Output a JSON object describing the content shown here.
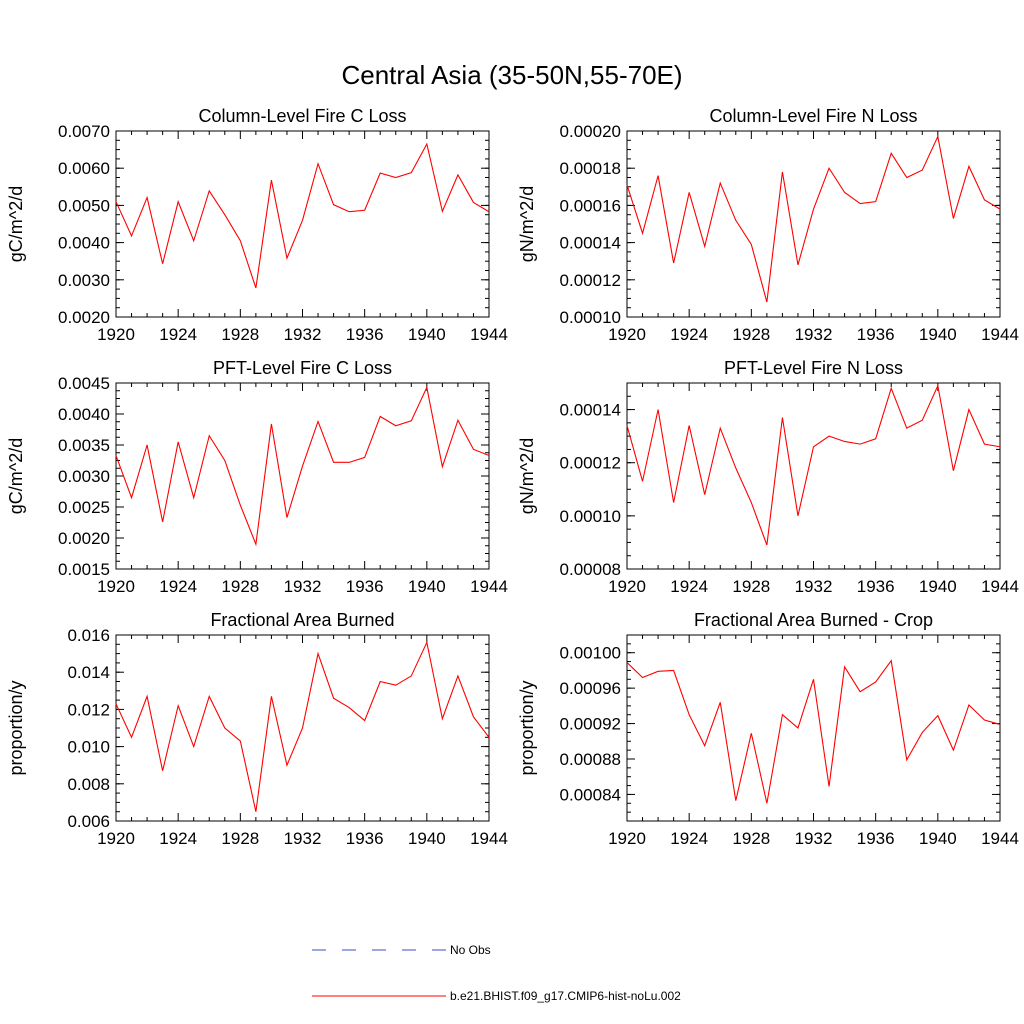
{
  "title": "Central Asia (35-50N,55-70E)",
  "legend": [
    {
      "label": "No Obs",
      "color": "#3b4cc0",
      "dashed": true
    },
    {
      "label": "b.e21.BHIST.f09_g17.CMIP6-hist-noLu.002",
      "color": "#ff0000",
      "dashed": false
    }
  ],
  "chart_data": [
    {
      "type": "line",
      "title": "Column-Level Fire C Loss",
      "ylabel": "gC/m^2/d",
      "xlim": [
        1920,
        1944
      ],
      "ylim": [
        0.002,
        0.007
      ],
      "xticks": [
        "1920",
        "1924",
        "1928",
        "1932",
        "1936",
        "1940",
        "1944"
      ],
      "yticks": [
        "0.0020",
        "0.0030",
        "0.0040",
        "0.0050",
        "0.0060",
        "0.0070"
      ],
      "x": [
        1920,
        1921,
        1922,
        1923,
        1924,
        1925,
        1926,
        1927,
        1928,
        1929,
        1930,
        1931,
        1932,
        1933,
        1934,
        1935,
        1936,
        1937,
        1938,
        1939,
        1940,
        1941,
        1942,
        1943,
        1944
      ],
      "series": [
        {
          "name": "b.e21.BHIST.f09_g17.CMIP6-hist-noLu.002",
          "color": "#ff0000",
          "values": [
            0.0051,
            0.00418,
            0.00521,
            0.00343,
            0.0051,
            0.00405,
            0.00539,
            0.00475,
            0.00405,
            0.00278,
            0.00568,
            0.00358,
            0.0046,
            0.00612,
            0.00502,
            0.00483,
            0.00487,
            0.00587,
            0.00575,
            0.00588,
            0.00665,
            0.00484,
            0.00582,
            0.00508,
            0.00483
          ]
        }
      ]
    },
    {
      "type": "line",
      "title": "Column-Level Fire N Loss",
      "ylabel": "gN/m^2/d",
      "xlim": [
        1920,
        1944
      ],
      "ylim": [
        0.0001,
        0.0002
      ],
      "xticks": [
        "1920",
        "1924",
        "1928",
        "1932",
        "1936",
        "1940",
        "1944"
      ],
      "yticks": [
        "0.00010",
        "0.00012",
        "0.00014",
        "0.00016",
        "0.00018",
        "0.00020"
      ],
      "x": [
        1920,
        1921,
        1922,
        1923,
        1924,
        1925,
        1926,
        1927,
        1928,
        1929,
        1930,
        1931,
        1932,
        1933,
        1934,
        1935,
        1936,
        1937,
        1938,
        1939,
        1940,
        1941,
        1942,
        1943,
        1944
      ],
      "series": [
        {
          "name": "b.e21.BHIST.f09_g17.CMIP6-hist-noLu.002",
          "color": "#ff0000",
          "values": [
            0.000171,
            0.000145,
            0.000176,
            0.000129,
            0.000167,
            0.000138,
            0.000172,
            0.000152,
            0.000139,
            0.000108,
            0.000178,
            0.000128,
            0.000158,
            0.00018,
            0.000167,
            0.000161,
            0.000162,
            0.000188,
            0.000175,
            0.000179,
            0.000197,
            0.000153,
            0.000181,
            0.000163,
            0.000158
          ]
        }
      ]
    },
    {
      "type": "line",
      "title": "PFT-Level Fire C Loss",
      "ylabel": "gC/m^2/d",
      "xlim": [
        1920,
        1944
      ],
      "ylim": [
        0.0015,
        0.0045
      ],
      "xticks": [
        "1920",
        "1924",
        "1928",
        "1932",
        "1936",
        "1940",
        "1944"
      ],
      "yticks": [
        "0.0015",
        "0.0020",
        "0.0025",
        "0.0030",
        "0.0035",
        "0.0040",
        "0.0045"
      ],
      "x": [
        1920,
        1921,
        1922,
        1923,
        1924,
        1925,
        1926,
        1927,
        1928,
        1929,
        1930,
        1931,
        1932,
        1933,
        1934,
        1935,
        1936,
        1937,
        1938,
        1939,
        1940,
        1941,
        1942,
        1943,
        1944
      ],
      "series": [
        {
          "name": "b.e21.BHIST.f09_g17.CMIP6-hist-noLu.002",
          "color": "#ff0000",
          "values": [
            0.00333,
            0.00265,
            0.0035,
            0.00226,
            0.00355,
            0.00265,
            0.00365,
            0.00325,
            0.00253,
            0.0019,
            0.00384,
            0.00233,
            0.00316,
            0.00388,
            0.00322,
            0.00322,
            0.0033,
            0.00396,
            0.00381,
            0.00389,
            0.00443,
            0.00315,
            0.0039,
            0.00343,
            0.00333
          ]
        }
      ]
    },
    {
      "type": "line",
      "title": "PFT-Level Fire N Loss",
      "ylabel": "gN/m^2/d",
      "xlim": [
        1920,
        1944
      ],
      "ylim": [
        8e-05,
        0.00015
      ],
      "xticks": [
        "1920",
        "1924",
        "1928",
        "1932",
        "1936",
        "1940",
        "1944"
      ],
      "yticks": [
        "0.00008",
        "0.00010",
        "0.00012",
        "0.00014"
      ],
      "x": [
        1920,
        1921,
        1922,
        1923,
        1924,
        1925,
        1926,
        1927,
        1928,
        1929,
        1930,
        1931,
        1932,
        1933,
        1934,
        1935,
        1936,
        1937,
        1938,
        1939,
        1940,
        1941,
        1942,
        1943,
        1944
      ],
      "series": [
        {
          "name": "b.e21.BHIST.f09_g17.CMIP6-hist-noLu.002",
          "color": "#ff0000",
          "values": [
            0.000134,
            0.000113,
            0.00014,
            0.000105,
            0.000134,
            0.000108,
            0.000133,
            0.000118,
            0.000105,
            8.9e-05,
            0.000137,
            0.0001,
            0.000126,
            0.00013,
            0.000128,
            0.000127,
            0.000129,
            0.000148,
            0.000133,
            0.000136,
            0.000149,
            0.000117,
            0.00014,
            0.000127,
            0.000126
          ]
        }
      ]
    },
    {
      "type": "line",
      "title": "Fractional Area Burned",
      "ylabel": "proportion/y",
      "xlim": [
        1920,
        1944
      ],
      "ylim": [
        0.006,
        0.016
      ],
      "xticks": [
        "1920",
        "1924",
        "1928",
        "1932",
        "1936",
        "1940",
        "1944"
      ],
      "yticks": [
        "0.006",
        "0.008",
        "0.010",
        "0.012",
        "0.014",
        "0.016"
      ],
      "x": [
        1920,
        1921,
        1922,
        1923,
        1924,
        1925,
        1926,
        1927,
        1928,
        1929,
        1930,
        1931,
        1932,
        1933,
        1934,
        1935,
        1936,
        1937,
        1938,
        1939,
        1940,
        1941,
        1942,
        1943,
        1944
      ],
      "series": [
        {
          "name": "b.e21.BHIST.f09_g17.CMIP6-hist-noLu.002",
          "color": "#ff0000",
          "values": [
            0.0123,
            0.0105,
            0.0127,
            0.0087,
            0.0122,
            0.01,
            0.0127,
            0.011,
            0.0103,
            0.0065,
            0.0127,
            0.009,
            0.011,
            0.015,
            0.0126,
            0.0121,
            0.0114,
            0.0135,
            0.0133,
            0.0138,
            0.0156,
            0.0115,
            0.0138,
            0.0116,
            0.0105
          ]
        }
      ]
    },
    {
      "type": "line",
      "title": "Fractional Area Burned - Crop",
      "ylabel": "proportion/y",
      "xlim": [
        1920,
        1944
      ],
      "ylim": [
        0.00081,
        0.00102
      ],
      "xticks": [
        "1920",
        "1924",
        "1928",
        "1932",
        "1936",
        "1940",
        "1944"
      ],
      "yticks": [
        "0.00084",
        "0.00088",
        "0.00092",
        "0.00096",
        "0.00100"
      ],
      "x": [
        1920,
        1921,
        1922,
        1923,
        1924,
        1925,
        1926,
        1927,
        1928,
        1929,
        1930,
        1931,
        1932,
        1933,
        1934,
        1935,
        1936,
        1937,
        1938,
        1939,
        1940,
        1941,
        1942,
        1943,
        1944
      ],
      "series": [
        {
          "name": "b.e21.BHIST.f09_g17.CMIP6-hist-noLu.002",
          "color": "#ff0000",
          "values": [
            0.000989,
            0.000972,
            0.000979,
            0.00098,
            0.00093,
            0.000895,
            0.000944,
            0.000833,
            0.000909,
            0.00083,
            0.00093,
            0.000915,
            0.00097,
            0.000849,
            0.000984,
            0.000956,
            0.000967,
            0.000991,
            0.000879,
            0.00091,
            0.000929,
            0.00089,
            0.000941,
            0.000924,
            0.000919
          ]
        }
      ]
    }
  ]
}
